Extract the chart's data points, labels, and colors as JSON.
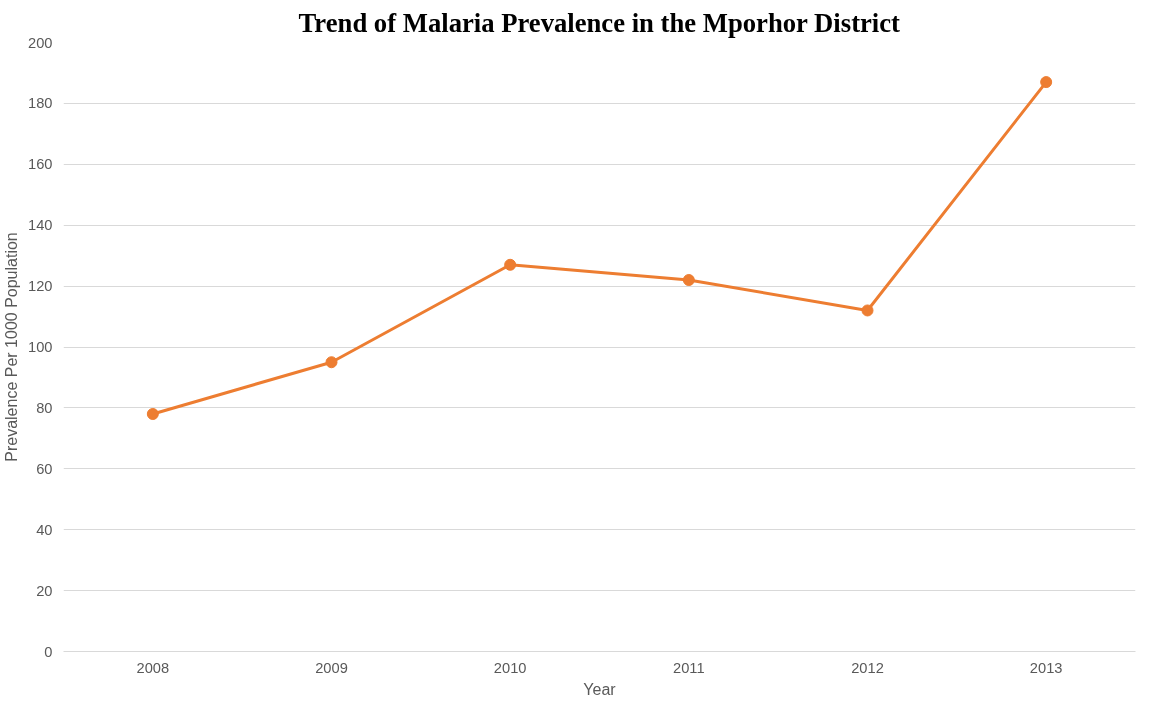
{
  "chart_data": {
    "type": "line",
    "title": "Trend of Malaria Prevalence in the Mporhor District",
    "xlabel": "Year",
    "ylabel": "Prevalence Per 1000 Population",
    "categories": [
      "2008",
      "2009",
      "2010",
      "2011",
      "2012",
      "2013"
    ],
    "series": [
      {
        "color": "#ed7d31",
        "values": [
          78,
          95,
          127,
          122,
          112,
          187
        ]
      }
    ],
    "ylim": [
      0,
      200
    ],
    "yticks": [
      0,
      20,
      40,
      60,
      80,
      100,
      120,
      140,
      160,
      180,
      200
    ],
    "grid": "y",
    "marker": "circle",
    "line_style": "solid"
  }
}
